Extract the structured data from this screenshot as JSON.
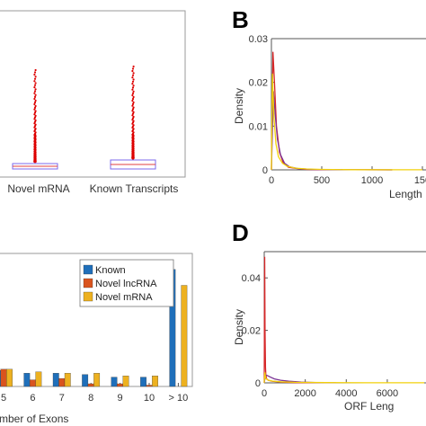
{
  "panels": {
    "A": {
      "chart_data": {
        "type": "box",
        "categories": [
          "Novel mRNA",
          "Known Transcripts"
        ],
        "box_color": "#7b68ee",
        "outlier_color": "#dd0000"
      }
    },
    "B": {
      "letter": "B",
      "chart_data": {
        "type": "line",
        "ylabel": "Density",
        "xlabel": "Length",
        "xticks": [
          "0",
          "500",
          "1000",
          "150"
        ],
        "yticks": [
          "0",
          "0.01",
          "0.02",
          "0.03"
        ],
        "xlim": [
          0,
          1500
        ],
        "ylim": [
          0,
          0.03
        ],
        "series": [
          {
            "color": "#d62728",
            "x": [
              0,
              15,
              30,
              50,
              80,
              120,
              170,
              250,
              350,
              500,
              800,
              1200
            ],
            "y": [
              0.0,
              0.027,
              0.02,
              0.01,
              0.004,
              0.0015,
              0.0006,
              0.0003,
              0.0001,
              5e-05,
              2e-05,
              1e-05
            ]
          },
          {
            "color": "#7b3294",
            "x": [
              0,
              20,
              40,
              60,
              90,
              130,
              180,
              260,
              400,
              600,
              900,
              1200
            ],
            "y": [
              0.0,
              0.018,
              0.012,
              0.007,
              0.0035,
              0.0015,
              0.0007,
              0.0003,
              0.0001,
              5e-05,
              2e-05,
              1e-05
            ]
          },
          {
            "color": "#f2d10b",
            "x": [
              0,
              10,
              25,
              45,
              70,
              110,
              160,
              240,
              350,
              500,
              800,
              1200,
              1500
            ],
            "y": [
              0.0,
              0.022,
              0.012,
              0.006,
              0.003,
              0.0015,
              0.0008,
              0.0004,
              0.0002,
              0.0001,
              5e-05,
              3e-05,
              2e-05
            ]
          }
        ]
      }
    },
    "C": {
      "chart_data": {
        "type": "bar",
        "xlabel": "mber of Exons",
        "categories": [
          "5",
          "6",
          "7",
          "8",
          "9",
          "10",
          "> 10"
        ],
        "ylim": [
          0,
          0.5
        ],
        "legend": {
          "position": "top-right",
          "entries": [
            "Known",
            "Novel lncRNA",
            "Novel mRNA"
          ]
        },
        "series": [
          {
            "name": "Known",
            "color": "#1f6fba",
            "values": [
              0.06,
              0.05,
              0.05,
              0.045,
              0.035,
              0.035,
              0.44
            ]
          },
          {
            "name": "Novel lncRNA",
            "color": "#d9541e",
            "values": [
              0.065,
              0.025,
              0.03,
              0.01,
              0.01,
              0.005,
              0.0
            ]
          },
          {
            "name": "Novel mRNA",
            "color": "#edb120",
            "values": [
              0.065,
              0.055,
              0.05,
              0.05,
              0.04,
              0.04,
              0.38
            ]
          }
        ]
      }
    },
    "D": {
      "letter": "D",
      "chart_data": {
        "type": "line",
        "ylabel": "Density",
        "xlabel": "ORF Leng",
        "xticks": [
          "0",
          "2000",
          "4000",
          "6000"
        ],
        "yticks": [
          "0",
          "0.02",
          "0.04"
        ],
        "xlim": [
          0,
          7800
        ],
        "ylim": [
          0,
          0.05
        ],
        "series": [
          {
            "color": "#d62728",
            "x": [
              0,
              20,
              40,
              60,
              80,
              120,
              200,
              400,
              800,
              1500,
              3000
            ],
            "y": [
              0.0,
              0.048,
              0.02,
              0.006,
              0.003,
              0.0015,
              0.001,
              0.0006,
              0.0003,
              0.0001,
              3e-05
            ]
          },
          {
            "color": "#7b3294",
            "x": [
              0,
              60,
              150,
              300,
              500,
              800,
              1200,
              1800,
              2500,
              3500
            ],
            "y": [
              0.0,
              0.003,
              0.0028,
              0.0022,
              0.0015,
              0.001,
              0.0006,
              0.0003,
              0.0001,
              3e-05
            ]
          },
          {
            "color": "#f2d10b",
            "x": [
              0,
              30,
              60,
              100,
              200,
              400,
              800,
              1500,
              3000,
              5000,
              7800
            ],
            "y": [
              0.0,
              0.004,
              0.0022,
              0.0015,
              0.001,
              0.0007,
              0.0004,
              0.0002,
              0.0001,
              5e-05,
              3e-05
            ]
          }
        ]
      }
    }
  }
}
